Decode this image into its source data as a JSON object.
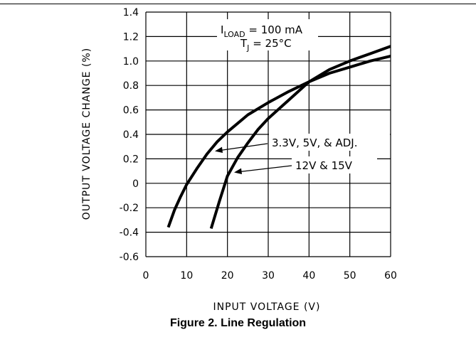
{
  "caption": "Figure 2. Line Regulation",
  "chart_data": {
    "type": "line",
    "xlabel": "INPUT VOLTAGE (V)",
    "ylabel": "OUTPUT VOLTAGE CHANGE (%)",
    "xlim": [
      0,
      60
    ],
    "ylim": [
      -0.6,
      1.4
    ],
    "x_ticks": [
      "0",
      "10",
      "20",
      "30",
      "40",
      "50",
      "60"
    ],
    "y_ticks": [
      "-0.6",
      "-0.4",
      "-0.2",
      "0",
      "0.2",
      "0.4",
      "0.6",
      "0.8",
      "1.0",
      "1.2",
      "1.4"
    ],
    "grid": true,
    "conditions": {
      "line1_main": "I",
      "line1_sub": "LOAD",
      "line1_rest": " = 100 mA",
      "line2_main": "T",
      "line2_sub": "J",
      "line2_rest": " = 25°C"
    },
    "series": [
      {
        "name": "3.3V, 5V, & ADJ.",
        "x": [
          5.5,
          7,
          8.5,
          10,
          12.5,
          15,
          17.5,
          20,
          25,
          30,
          35,
          40,
          45,
          50,
          55,
          60
        ],
        "y": [
          -0.36,
          -0.22,
          -0.11,
          -0.01,
          0.12,
          0.24,
          0.34,
          0.42,
          0.56,
          0.66,
          0.75,
          0.83,
          0.9,
          0.95,
          1.0,
          1.04
        ]
      },
      {
        "name": "12V & 15V",
        "x": [
          16,
          18,
          20,
          22.5,
          25,
          27.5,
          30,
          35,
          40,
          45,
          50,
          55,
          60
        ],
        "y": [
          -0.37,
          -0.15,
          0.06,
          0.21,
          0.33,
          0.44,
          0.53,
          0.68,
          0.83,
          0.93,
          1.0,
          1.06,
          1.12
        ]
      }
    ]
  }
}
